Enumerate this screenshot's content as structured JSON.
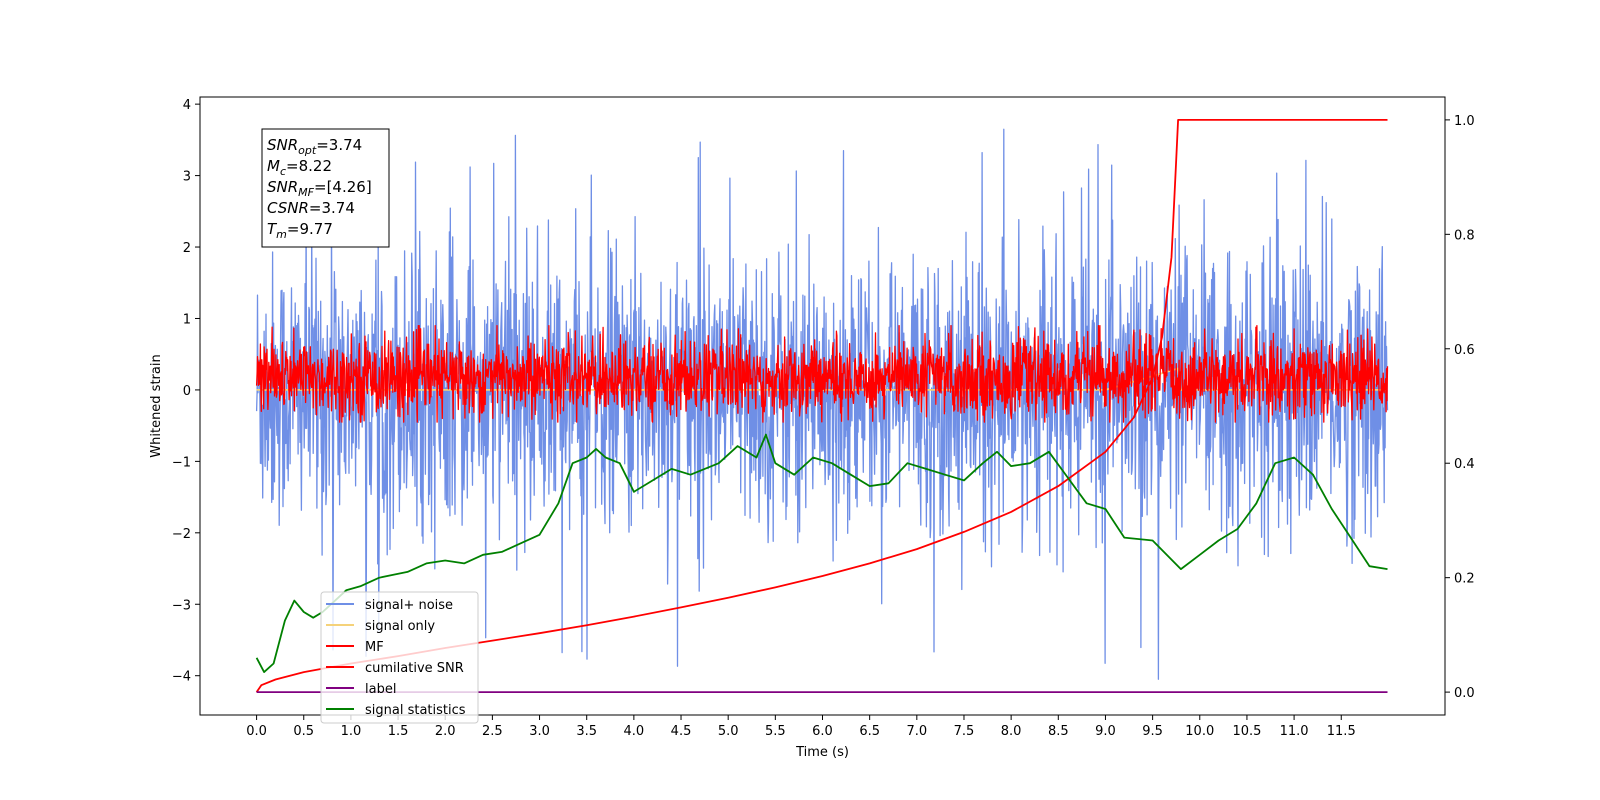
{
  "chart_data": {
    "type": "line",
    "title": "",
    "xlabel": "Time (s)",
    "ylabel": "Whitened strain",
    "xlim": [
      -0.6,
      12.6
    ],
    "ylim": [
      -4.55,
      4.1
    ],
    "y2lim": [
      -0.04,
      1.04
    ],
    "x_ticks": [
      0.0,
      0.5,
      1.0,
      1.5,
      2.0,
      2.5,
      3.0,
      3.5,
      4.0,
      4.5,
      5.0,
      5.5,
      6.0,
      6.5,
      7.0,
      7.5,
      8.0,
      8.5,
      9.0,
      9.5,
      10.0,
      10.5,
      11.0,
      11.5
    ],
    "x_tick_labels": [
      "0.0",
      "0.5",
      "1.0",
      "1.5",
      "2.0",
      "2.5",
      "3.0",
      "3.5",
      "4.0",
      "4.5",
      "5.0",
      "5.5",
      "6.0",
      "6.5",
      "7.0",
      "7.5",
      "8.0",
      "8.5",
      "9.0",
      "9.5",
      "10.0",
      "10.5",
      "11.0",
      "11.5"
    ],
    "y_ticks": [
      -4,
      -3,
      -2,
      -1,
      0,
      1,
      2,
      3,
      4
    ],
    "y_tick_labels": [
      "−4",
      "−3",
      "−2",
      "−1",
      "0",
      "1",
      "2",
      "3",
      "4"
    ],
    "y2_ticks": [
      0.0,
      0.2,
      0.4,
      0.6,
      0.8,
      1.0
    ],
    "y2_tick_labels": [
      "0.0",
      "0.2",
      "0.4",
      "0.6",
      "0.8",
      "1.0"
    ],
    "grid": false,
    "legend_position": "lower-left",
    "annotation": {
      "lines": [
        {
          "base": "SNR",
          "sub": "opt",
          "rest": "=3.74"
        },
        {
          "base": "M",
          "sub": "c",
          "rest": "=8.22"
        },
        {
          "base": "SNR",
          "sub": "MF",
          "rest": "=[4.26]"
        },
        {
          "base": "CSNR",
          "sub": "",
          "rest": "=3.74"
        },
        {
          "base": "T",
          "sub": "m",
          "rest": "=9.77"
        }
      ]
    },
    "series": [
      {
        "name": "signal+ noise",
        "axis": "left",
        "color": "#6f8fe6",
        "kind": "noise",
        "x_range": [
          0.0,
          11.99
        ],
        "center": -0.1,
        "band": [
          -2.0,
          2.0
        ],
        "extremes": [
          -4.15,
          3.68
        ]
      },
      {
        "name": "signal only",
        "axis": "left",
        "color": "#f5d27a",
        "points": [
          [
            0.0,
            0.0
          ],
          [
            3.0,
            0.0
          ],
          [
            6.0,
            0.0
          ],
          [
            9.0,
            0.0
          ],
          [
            9.77,
            0.3
          ],
          [
            9.8,
            0.0
          ],
          [
            11.99,
            0.0
          ]
        ]
      },
      {
        "name": "MF",
        "axis": "left",
        "color": "#ff0000",
        "kind": "noise",
        "x_range": [
          0.0,
          11.99
        ],
        "center": 0.0,
        "band": [
          -0.4,
          0.75
        ],
        "extremes": [
          -0.45,
          0.9
        ]
      },
      {
        "name": "cumilative SNR",
        "axis": "right",
        "color": "#ff0000",
        "points": [
          [
            0.0,
            0.0
          ],
          [
            0.05,
            0.012
          ],
          [
            0.2,
            0.022
          ],
          [
            0.5,
            0.035
          ],
          [
            1.0,
            0.05
          ],
          [
            1.5,
            0.063
          ],
          [
            2.0,
            0.077
          ],
          [
            2.5,
            0.09
          ],
          [
            3.0,
            0.103
          ],
          [
            3.5,
            0.117
          ],
          [
            4.0,
            0.132
          ],
          [
            4.5,
            0.148
          ],
          [
            5.0,
            0.165
          ],
          [
            5.5,
            0.183
          ],
          [
            6.0,
            0.203
          ],
          [
            6.5,
            0.225
          ],
          [
            7.0,
            0.25
          ],
          [
            7.5,
            0.28
          ],
          [
            8.0,
            0.315
          ],
          [
            8.5,
            0.36
          ],
          [
            9.0,
            0.42
          ],
          [
            9.3,
            0.48
          ],
          [
            9.5,
            0.55
          ],
          [
            9.6,
            0.62
          ],
          [
            9.7,
            0.76
          ],
          [
            9.75,
            0.93
          ],
          [
            9.77,
            1.0
          ],
          [
            10.5,
            1.0
          ],
          [
            11.99,
            1.0
          ]
        ]
      },
      {
        "name": "label",
        "axis": "right",
        "color": "#800080",
        "points": [
          [
            0.0,
            0.0
          ],
          [
            11.99,
            0.0
          ]
        ]
      },
      {
        "name": "signal statistics",
        "axis": "right",
        "color": "#008000",
        "points": [
          [
            0.0,
            0.06
          ],
          [
            0.08,
            0.035
          ],
          [
            0.18,
            0.05
          ],
          [
            0.3,
            0.125
          ],
          [
            0.4,
            0.16
          ],
          [
            0.5,
            0.14
          ],
          [
            0.6,
            0.13
          ],
          [
            0.7,
            0.14
          ],
          [
            0.8,
            0.155
          ],
          [
            0.95,
            0.178
          ],
          [
            1.1,
            0.185
          ],
          [
            1.3,
            0.2
          ],
          [
            1.45,
            0.205
          ],
          [
            1.6,
            0.21
          ],
          [
            1.8,
            0.225
          ],
          [
            2.0,
            0.23
          ],
          [
            2.2,
            0.225
          ],
          [
            2.4,
            0.24
          ],
          [
            2.6,
            0.245
          ],
          [
            2.8,
            0.26
          ],
          [
            3.0,
            0.275
          ],
          [
            3.2,
            0.33
          ],
          [
            3.35,
            0.4
          ],
          [
            3.5,
            0.41
          ],
          [
            3.6,
            0.425
          ],
          [
            3.7,
            0.41
          ],
          [
            3.85,
            0.4
          ],
          [
            4.0,
            0.35
          ],
          [
            4.2,
            0.37
          ],
          [
            4.4,
            0.39
          ],
          [
            4.6,
            0.38
          ],
          [
            4.9,
            0.4
          ],
          [
            5.1,
            0.43
          ],
          [
            5.3,
            0.41
          ],
          [
            5.4,
            0.45
          ],
          [
            5.5,
            0.4
          ],
          [
            5.7,
            0.38
          ],
          [
            5.9,
            0.41
          ],
          [
            6.1,
            0.4
          ],
          [
            6.3,
            0.38
          ],
          [
            6.5,
            0.36
          ],
          [
            6.7,
            0.365
          ],
          [
            6.9,
            0.4
          ],
          [
            7.1,
            0.39
          ],
          [
            7.3,
            0.38
          ],
          [
            7.5,
            0.37
          ],
          [
            7.7,
            0.4
          ],
          [
            7.85,
            0.42
          ],
          [
            8.0,
            0.395
          ],
          [
            8.2,
            0.4
          ],
          [
            8.4,
            0.42
          ],
          [
            8.6,
            0.375
          ],
          [
            8.8,
            0.33
          ],
          [
            9.0,
            0.32
          ],
          [
            9.2,
            0.27
          ],
          [
            9.5,
            0.265
          ],
          [
            9.8,
            0.215
          ],
          [
            10.0,
            0.24
          ],
          [
            10.2,
            0.265
          ],
          [
            10.4,
            0.285
          ],
          [
            10.6,
            0.33
          ],
          [
            10.8,
            0.4
          ],
          [
            11.0,
            0.41
          ],
          [
            11.2,
            0.38
          ],
          [
            11.4,
            0.32
          ],
          [
            11.6,
            0.27
          ],
          [
            11.8,
            0.22
          ],
          [
            11.99,
            0.215
          ]
        ]
      }
    ]
  }
}
